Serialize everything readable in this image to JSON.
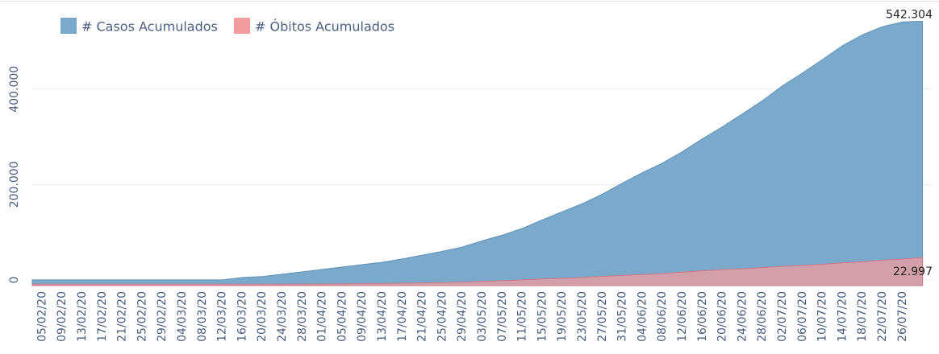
{
  "chart_data": {
    "type": "area",
    "categories": [
      "05/02/20",
      "09/02/20",
      "13/02/20",
      "17/02/20",
      "21/02/20",
      "25/02/20",
      "29/02/20",
      "04/03/20",
      "08/03/20",
      "12/03/20",
      "16/03/20",
      "20/03/20",
      "24/03/20",
      "28/03/20",
      "01/04/20",
      "05/04/20",
      "09/04/20",
      "13/04/20",
      "17/04/20",
      "21/04/20",
      "25/04/20",
      "29/04/20",
      "03/05/20",
      "07/05/20",
      "11/05/20",
      "15/05/20",
      "19/05/20",
      "23/05/20",
      "27/05/20",
      "31/05/20",
      "04/06/20",
      "08/06/20",
      "12/06/20",
      "16/06/20",
      "20/06/20",
      "24/06/20",
      "28/06/20",
      "02/07/20",
      "06/07/20",
      "10/07/20",
      "14/07/20",
      "18/07/20",
      "22/07/20",
      "26/07/20",
      null
    ],
    "series": [
      {
        "name": "# Casos Acumulados",
        "color": "#7aa9cb",
        "values": [
          0,
          0,
          0,
          0,
          0,
          1,
          2,
          3,
          25,
          77,
          5000,
          7000,
          12000,
          17000,
          22000,
          27000,
          32000,
          37000,
          44000,
          52000,
          60000,
          69000,
          82000,
          94000,
          108000,
          126000,
          143000,
          160000,
          180000,
          203000,
          225000,
          245000,
          269000,
          296000,
          321000,
          348000,
          376000,
          407000,
          434000,
          462000,
          491000,
          514000,
          531000,
          541000,
          542304
        ],
        "value_labels": [
          null,
          null,
          null,
          null,
          null,
          null,
          null,
          null,
          null,
          null,
          null,
          null,
          null,
          null,
          null,
          null,
          null,
          null,
          null,
          null,
          null,
          null,
          null,
          null,
          null,
          null,
          null,
          null,
          null,
          null,
          null,
          null,
          null,
          null,
          null,
          null,
          null,
          null,
          null,
          null,
          null,
          null,
          null,
          null,
          "542.304"
        ]
      },
      {
        "name": "# Óbitos Acumulados",
        "color": "#f29c9f",
        "axis": "y2",
        "values": [
          0,
          0,
          0,
          0,
          0,
          0,
          0,
          0,
          0,
          0,
          0,
          9,
          40,
          84,
          164,
          275,
          496,
          608,
          853,
          1093,
          1512,
          1845,
          2418,
          3045,
          3709,
          4501,
          5147,
          5773,
          6712,
          7532,
          8404,
          9188,
          10368,
          11521,
          12588,
          13352,
          14263,
          15351,
          16134,
          17118,
          18324,
          19377,
          20671,
          21517,
          22997
        ],
        "value_labels": [
          null,
          null,
          null,
          null,
          null,
          null,
          null,
          null,
          null,
          null,
          null,
          null,
          null,
          null,
          null,
          null,
          null,
          null,
          null,
          null,
          null,
          null,
          null,
          null,
          null,
          null,
          null,
          null,
          null,
          null,
          null,
          null,
          null,
          null,
          null,
          null,
          null,
          null,
          null,
          null,
          null,
          null,
          null,
          null,
          "22.997"
        ]
      }
    ],
    "ylim": [
      -12000,
      570000
    ],
    "yticks": [
      {
        "value": 0,
        "label": "0"
      },
      {
        "value": 200000,
        "label": "200.000"
      },
      {
        "value": 400000,
        "label": "400.000"
      }
    ],
    "y2lim": [
      -1200,
      237300
    ],
    "grid": true,
    "legend": "top-left"
  }
}
